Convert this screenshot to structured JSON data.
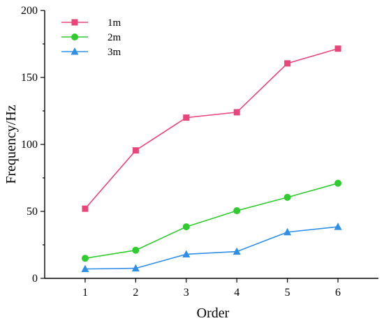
{
  "chart_data": {
    "type": "line",
    "xlabel": "Order",
    "ylabel": "Frequency/Hz",
    "x": [
      1,
      2,
      3,
      4,
      5,
      6
    ],
    "xticks": [
      "1",
      "2",
      "3",
      "4",
      "5",
      "6"
    ],
    "yticks": [
      "0",
      "50",
      "100",
      "150",
      "200"
    ],
    "ylim": [
      0,
      200
    ],
    "xlim": [
      0.2,
      6.8
    ],
    "grid": false,
    "legend_position": "top-left",
    "series": [
      {
        "name": "1m",
        "color": "#e8457a",
        "marker": "square",
        "values": [
          52,
          95.5,
          120,
          124,
          160.5,
          171.5
        ]
      },
      {
        "name": "2m",
        "color": "#2ecc2e",
        "marker": "circle",
        "values": [
          15,
          21,
          38.5,
          50.5,
          60.5,
          71
        ]
      },
      {
        "name": "3m",
        "color": "#2f8fe6",
        "marker": "triangle",
        "values": [
          7,
          7.5,
          18,
          20,
          34.5,
          38.5
        ]
      }
    ]
  }
}
